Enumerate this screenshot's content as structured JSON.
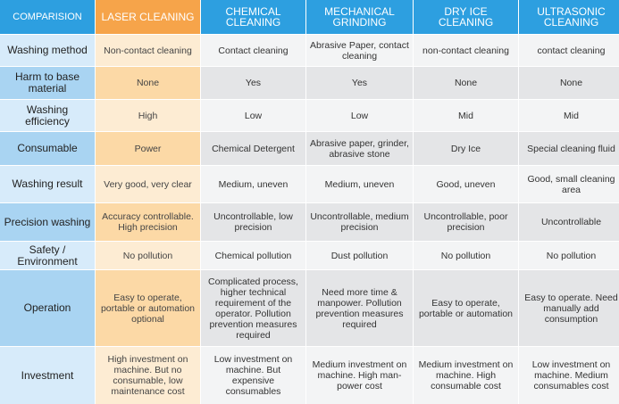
{
  "header": [
    "COMPARISION",
    "LASER CLEANING",
    "CHEMICAL CLEANING",
    "MECHANICAL GRINDING",
    "DRY ICE CLEANING",
    "ULTRASONIC CLEANING"
  ],
  "rows": [
    {
      "label": "Washing method",
      "cells": [
        "Non-contact cleaning",
        "Contact cleaning",
        "Abrasive Paper, contact cleaning",
        "non-contact cleaning",
        "contact cleaning"
      ]
    },
    {
      "label": "Harm to base material",
      "cells": [
        "None",
        "Yes",
        "Yes",
        "None",
        "None"
      ]
    },
    {
      "label": "Washing efficiency",
      "cells": [
        "High",
        "Low",
        "Low",
        "Mid",
        "Mid"
      ]
    },
    {
      "label": "Consumable",
      "cells": [
        "Power",
        "Chemical Detergent",
        "Abrasive paper, grinder, abrasive stone",
        "Dry Ice",
        "Special cleaning fluid"
      ]
    },
    {
      "label": "Washing result",
      "cells": [
        "Very good, very clear",
        "Medium, uneven",
        "Medium, uneven",
        "Good, uneven",
        "Good, small cleaning area"
      ]
    },
    {
      "label": "Precision washing",
      "cells": [
        "Accuracy controllable. High precision",
        "Uncontrollable, low precision",
        "Uncontrollable, medium precision",
        "Uncontrollable, poor precision",
        "Uncontrollable"
      ]
    },
    {
      "label": "Safety / Environment",
      "cells": [
        "No pollution",
        "Chemical pollution",
        "Dust pollution",
        "No pollution",
        "No pollution"
      ]
    },
    {
      "label": "Operation",
      "cells": [
        "Easy to operate, portable or automation optional",
        "Complicated process, higher technical requirement of the operator. Pollution prevention measures required",
        "Need more time & manpower. Pollution prevention measures required",
        "Easy to operate, portable or automation",
        "Easy to operate. Need manually add consumption"
      ]
    },
    {
      "label": "Investment",
      "cells": [
        "High investment on machine. But no consumable, low maintenance cost",
        "Low investment on machine. But expensive consumables",
        "Medium investment on machine. High man-power cost",
        "Medium investment on machine. High consumable cost",
        "Low investment on machine. Medium consumables cost"
      ]
    }
  ],
  "colors": {
    "header_blue": "#2d9fe0",
    "header_orange": "#f6a44a",
    "label_dark": "#a9d4f2",
    "label_light": "#d7ebfa",
    "laser_dark": "#fcd9a6",
    "laser_light": "#fdecd3",
    "body_dark": "#e4e5e7",
    "body_light": "#f3f4f5"
  }
}
